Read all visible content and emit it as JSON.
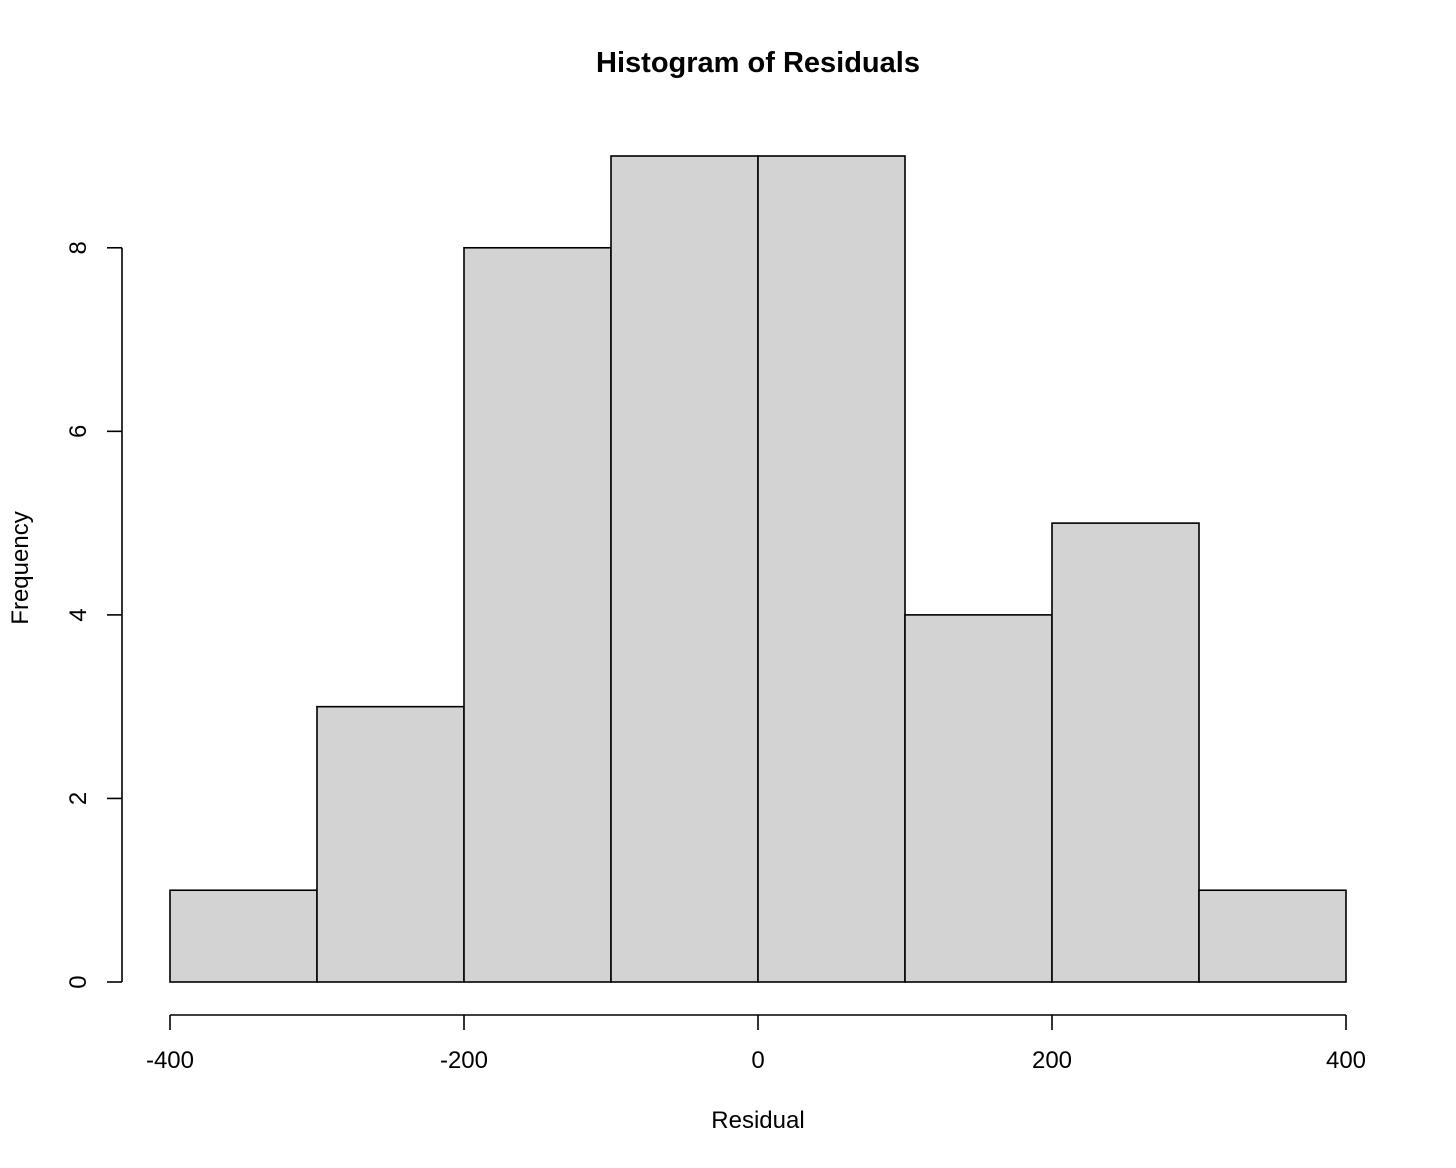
{
  "chart_data": {
    "type": "bar",
    "title": "Histogram of Residuals",
    "xlabel": "Residual",
    "ylabel": "Frequency",
    "bin_edges": [
      -400,
      -300,
      -200,
      -100,
      0,
      100,
      200,
      300,
      400
    ],
    "values": [
      1,
      3,
      8,
      9,
      9,
      4,
      5,
      1
    ],
    "xlim": [
      -400,
      400
    ],
    "ylim": [
      0,
      9
    ],
    "x_ticks": [
      -400,
      -200,
      0,
      200,
      400
    ],
    "y_ticks": [
      0,
      2,
      4,
      6,
      8
    ],
    "bar_color": "#d3d3d3",
    "grid": false,
    "legend": "none"
  }
}
